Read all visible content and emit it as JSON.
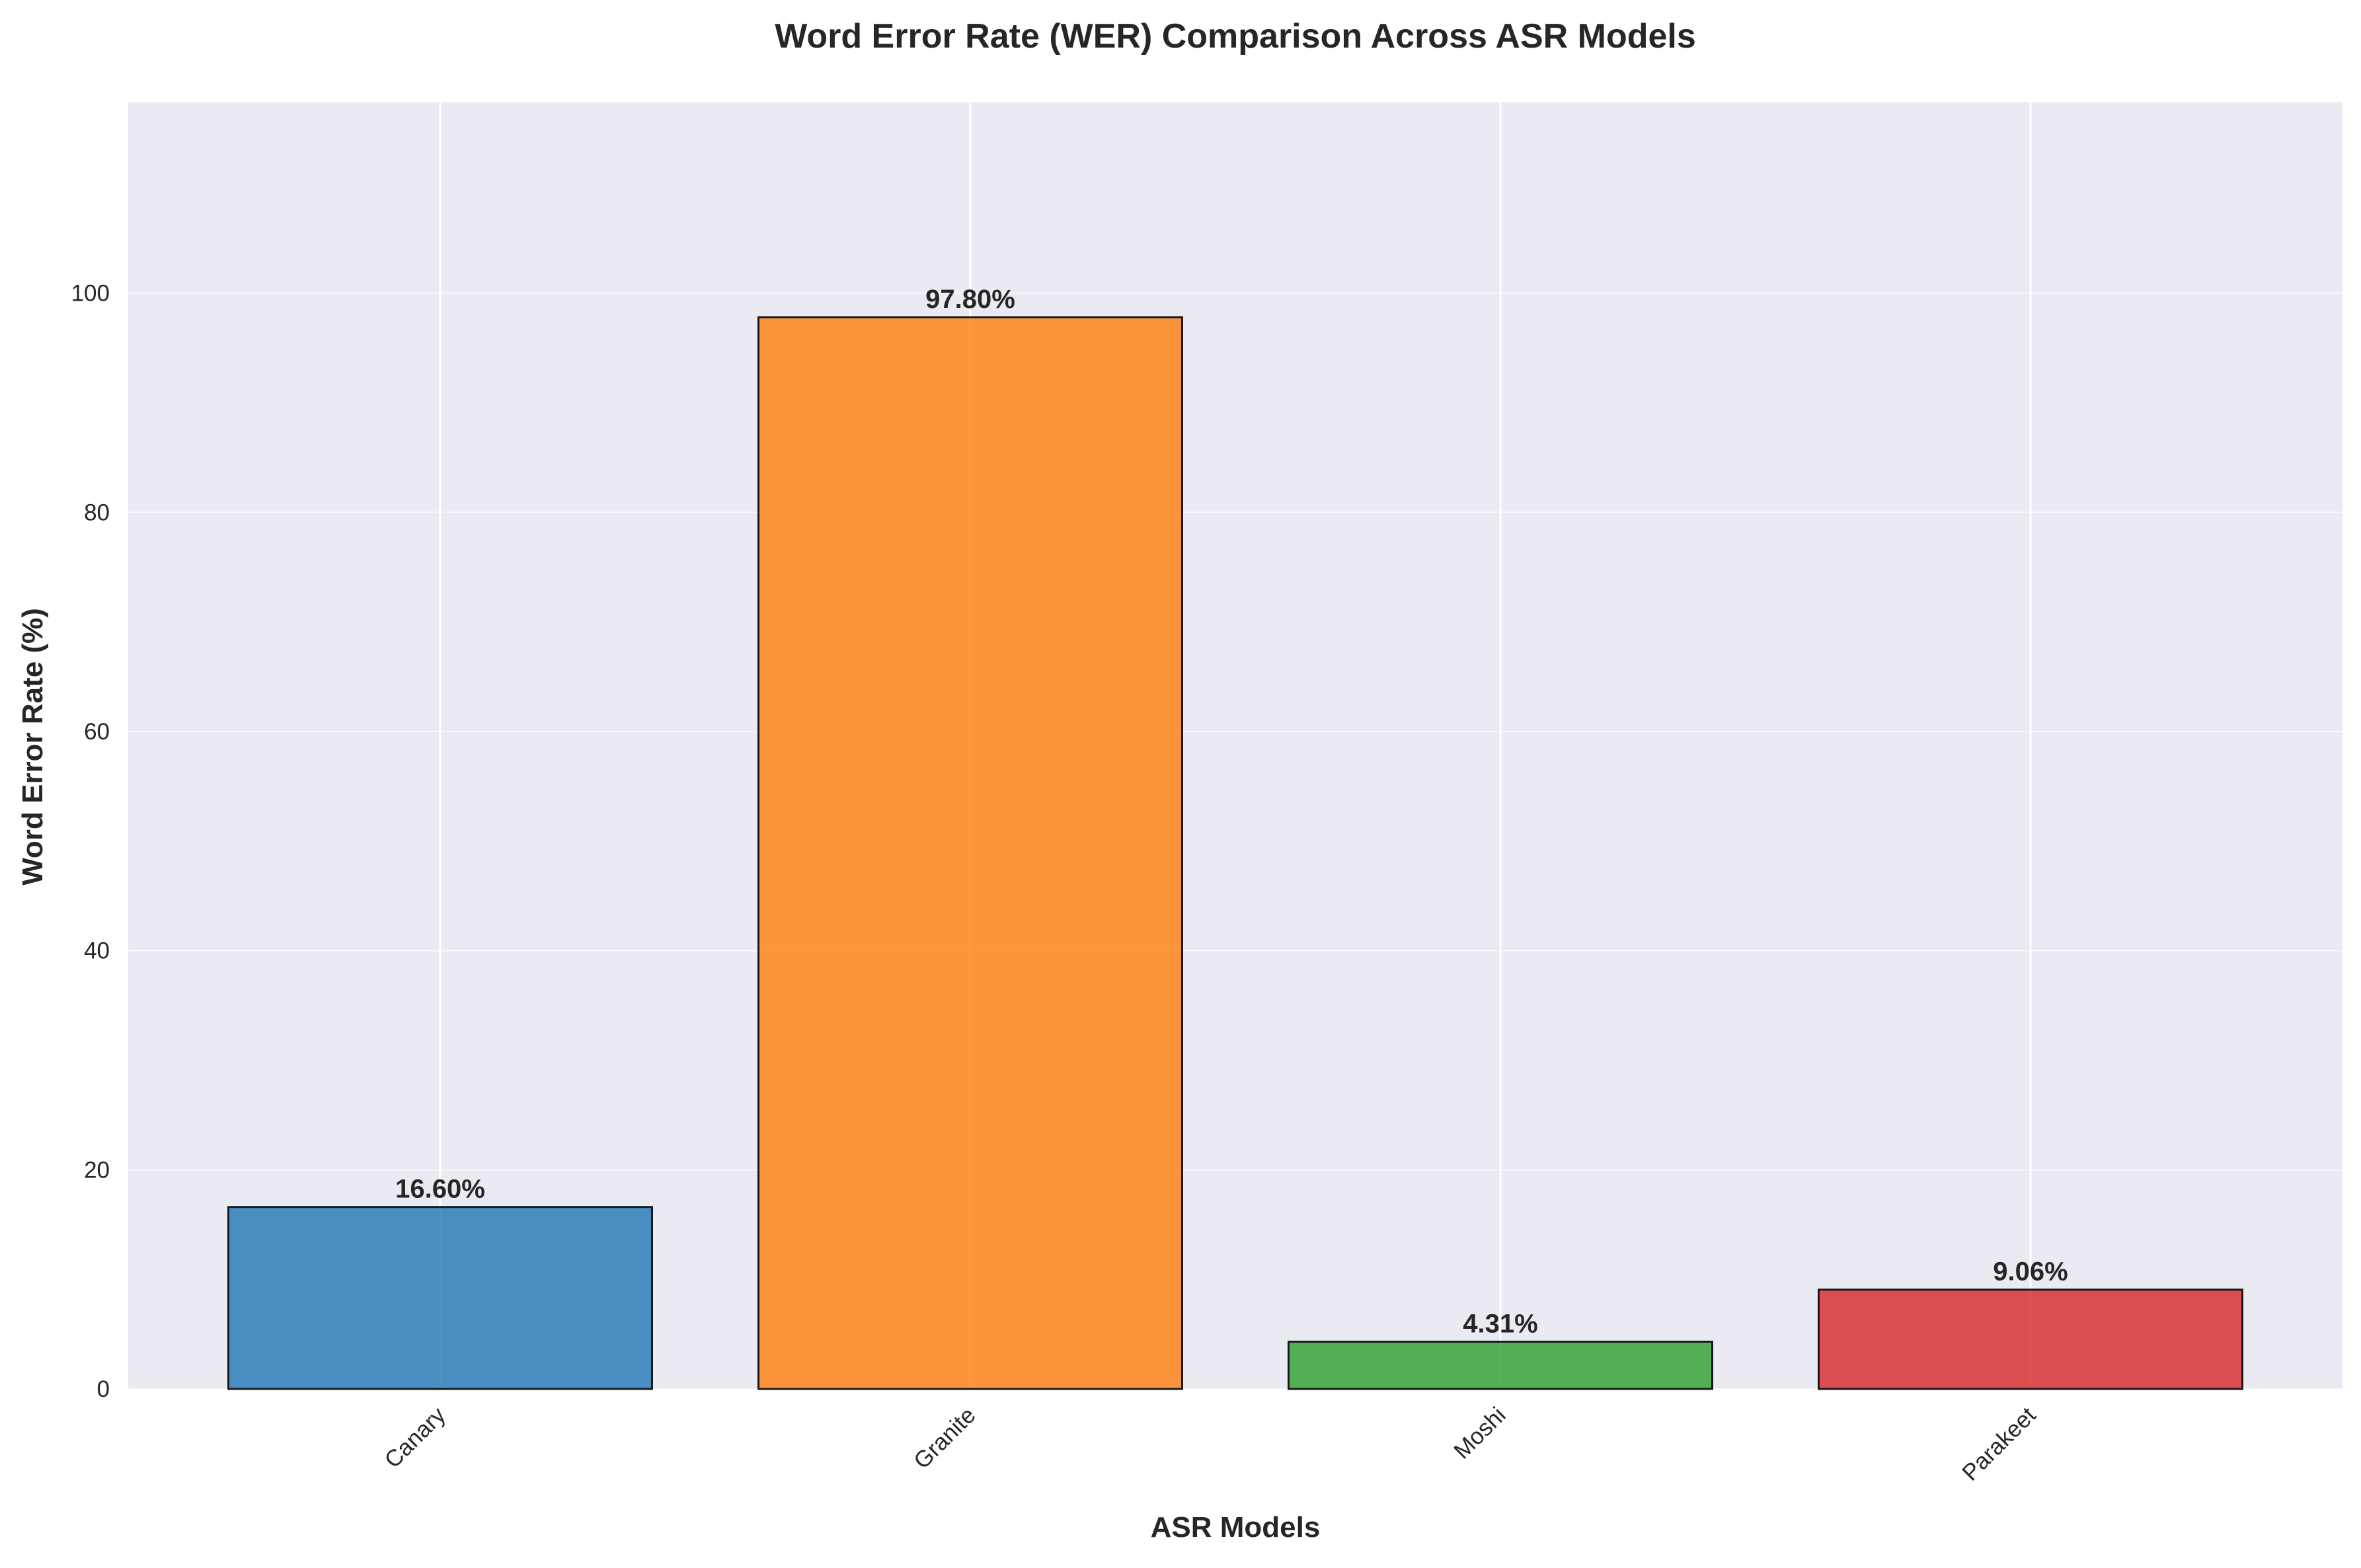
{
  "chart_data": {
    "type": "bar",
    "title": "Word Error Rate (WER) Comparison Across ASR Models",
    "xlabel": "ASR Models",
    "ylabel": "Word Error Rate (%)",
    "categories": [
      "Canary",
      "Granite",
      "Moshi",
      "Parakeet"
    ],
    "values": [
      16.6,
      97.8,
      4.31,
      9.06
    ],
    "value_labels": [
      "16.60%",
      "97.80%",
      "4.31%",
      "9.06%"
    ],
    "colors": [
      "#1f77b4",
      "#ff7f0e",
      "#2ca02c",
      "#d62728"
    ],
    "ylim": [
      0,
      117.4
    ],
    "yticks": [
      0,
      20,
      40,
      60,
      80,
      100
    ],
    "ytick_labels": [
      "0",
      "20",
      "40",
      "60",
      "80",
      "100"
    ],
    "grid": true,
    "background": "#eaeaf2",
    "bar_edge_color": "#1a1a1a"
  }
}
